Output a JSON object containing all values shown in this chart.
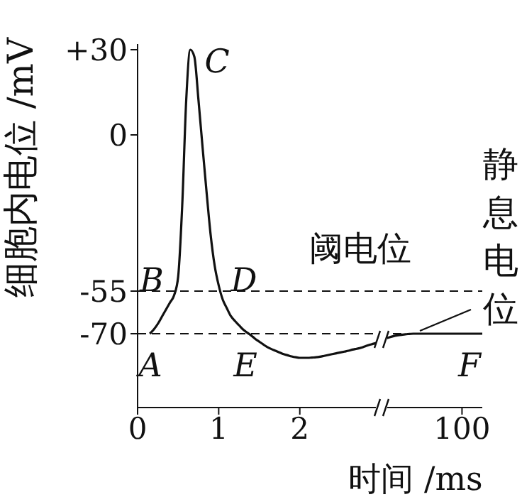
{
  "chart_data": {
    "type": "line",
    "xlabel": "时间 /ms",
    "ylabel": "细胞内电位 /mV",
    "categories": [
      "0",
      null,
      null,
      null,
      null,
      null,
      null,
      null,
      null,
      null,
      null,
      null,
      null,
      null,
      null,
      null,
      null,
      null,
      null,
      null,
      "1",
      null,
      null,
      null,
      null,
      null,
      null,
      null,
      null,
      null,
      null,
      null,
      null,
      null,
      null,
      null,
      null,
      null,
      null,
      null,
      "2",
      null,
      null,
      null,
      null,
      null,
      null,
      null,
      null,
      null,
      null,
      null,
      null,
      null,
      null,
      null,
      null,
      null,
      null,
      null,
      null,
      null,
      null,
      null,
      null,
      null,
      null,
      null,
      null,
      null,
      null,
      null,
      null,
      null,
      null,
      null,
      null,
      null,
      null,
      null,
      "100",
      null,
      null,
      null,
      null,
      null
    ],
    "series": [
      {
        "color": "#111111",
        "values": [
          null,
          null,
          null,
          -70,
          -68.5,
          -66.5,
          -64,
          -61.5,
          -59,
          -56.5,
          -50,
          -25,
          12.5,
          30,
          27.5,
          12.5,
          -4,
          -20,
          -35,
          -46,
          -53,
          -58,
          -61,
          -63.8,
          -65.5,
          -67,
          -68.5,
          -69.6,
          -70.6,
          -71.8,
          -72.8,
          -73.8,
          -74.7,
          -75.4,
          -76,
          -76.6,
          -77.2,
          -77.6,
          -78,
          -78.3,
          -78.5,
          -78.5,
          -78.5,
          -78.4,
          -78.3,
          -78.1,
          -77.8,
          -77.5,
          -77.2,
          -76.9,
          -76.6,
          -76.3,
          -76,
          -75.6,
          -75.3,
          -75,
          -74.5,
          -74,
          -73.6,
          -73.2,
          null,
          -71.8,
          -71.3,
          -70.9,
          -70.6,
          -70.4,
          -70.2,
          -70.1,
          -70,
          -70,
          -70,
          -70,
          -70,
          -70,
          -70,
          -70,
          -70,
          -70,
          -70,
          -70,
          -70,
          -70,
          -70,
          -70,
          -70,
          -70
        ]
      }
    ],
    "ylim": [
      -96,
      32
    ],
    "yticks": [
      {
        "value": 30,
        "label": "+30"
      },
      0,
      -55,
      -70
    ],
    "ref_lines": [
      {
        "axis": "y",
        "value": -55,
        "label": "阈电位",
        "line_style": "dashed"
      },
      {
        "axis": "y",
        "value": -70,
        "label": "静息电位",
        "line_style": "dashed"
      }
    ],
    "annotations": [
      "A",
      "B",
      "C",
      "D",
      "E",
      "F"
    ],
    "marker": "none",
    "line_style": "solid"
  }
}
